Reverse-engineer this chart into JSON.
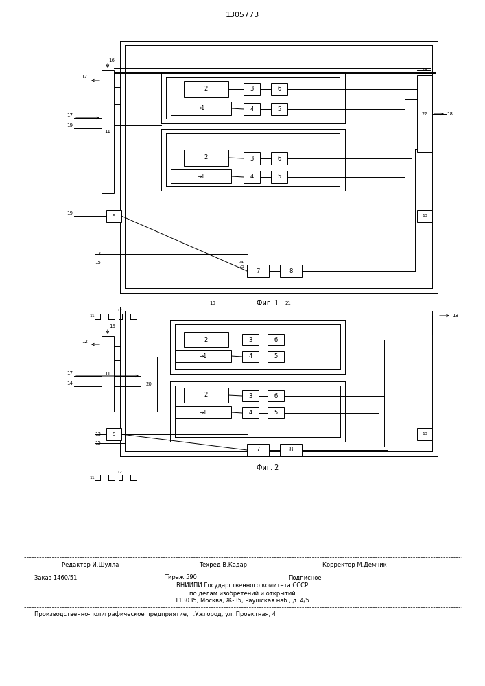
{
  "title": "1305773",
  "bg_color": "#ffffff",
  "fig1_caption": "Фиг. 1",
  "fig2_caption": "Фиг. 2",
  "footer_line1": "Редактор И.Шулла",
  "footer_line1b": "Техред В.Кадар",
  "footer_line1c": "Корректор М.Демчик",
  "footer_line2a": "Заказ 1460/51",
  "footer_line2b": "Тираж 590",
  "footer_line2c": "Подписное",
  "footer_line3": "ВНИИПИ Государственного комитета СССР",
  "footer_line4": "по делам изобретений и открытий",
  "footer_line5": "113035, Москва, Ж-35, Раушская наб., д. 4/5",
  "footer_line6": "Производственно-полиграфическое предприятие, г.Ужгород, ул. Проектная, 4"
}
